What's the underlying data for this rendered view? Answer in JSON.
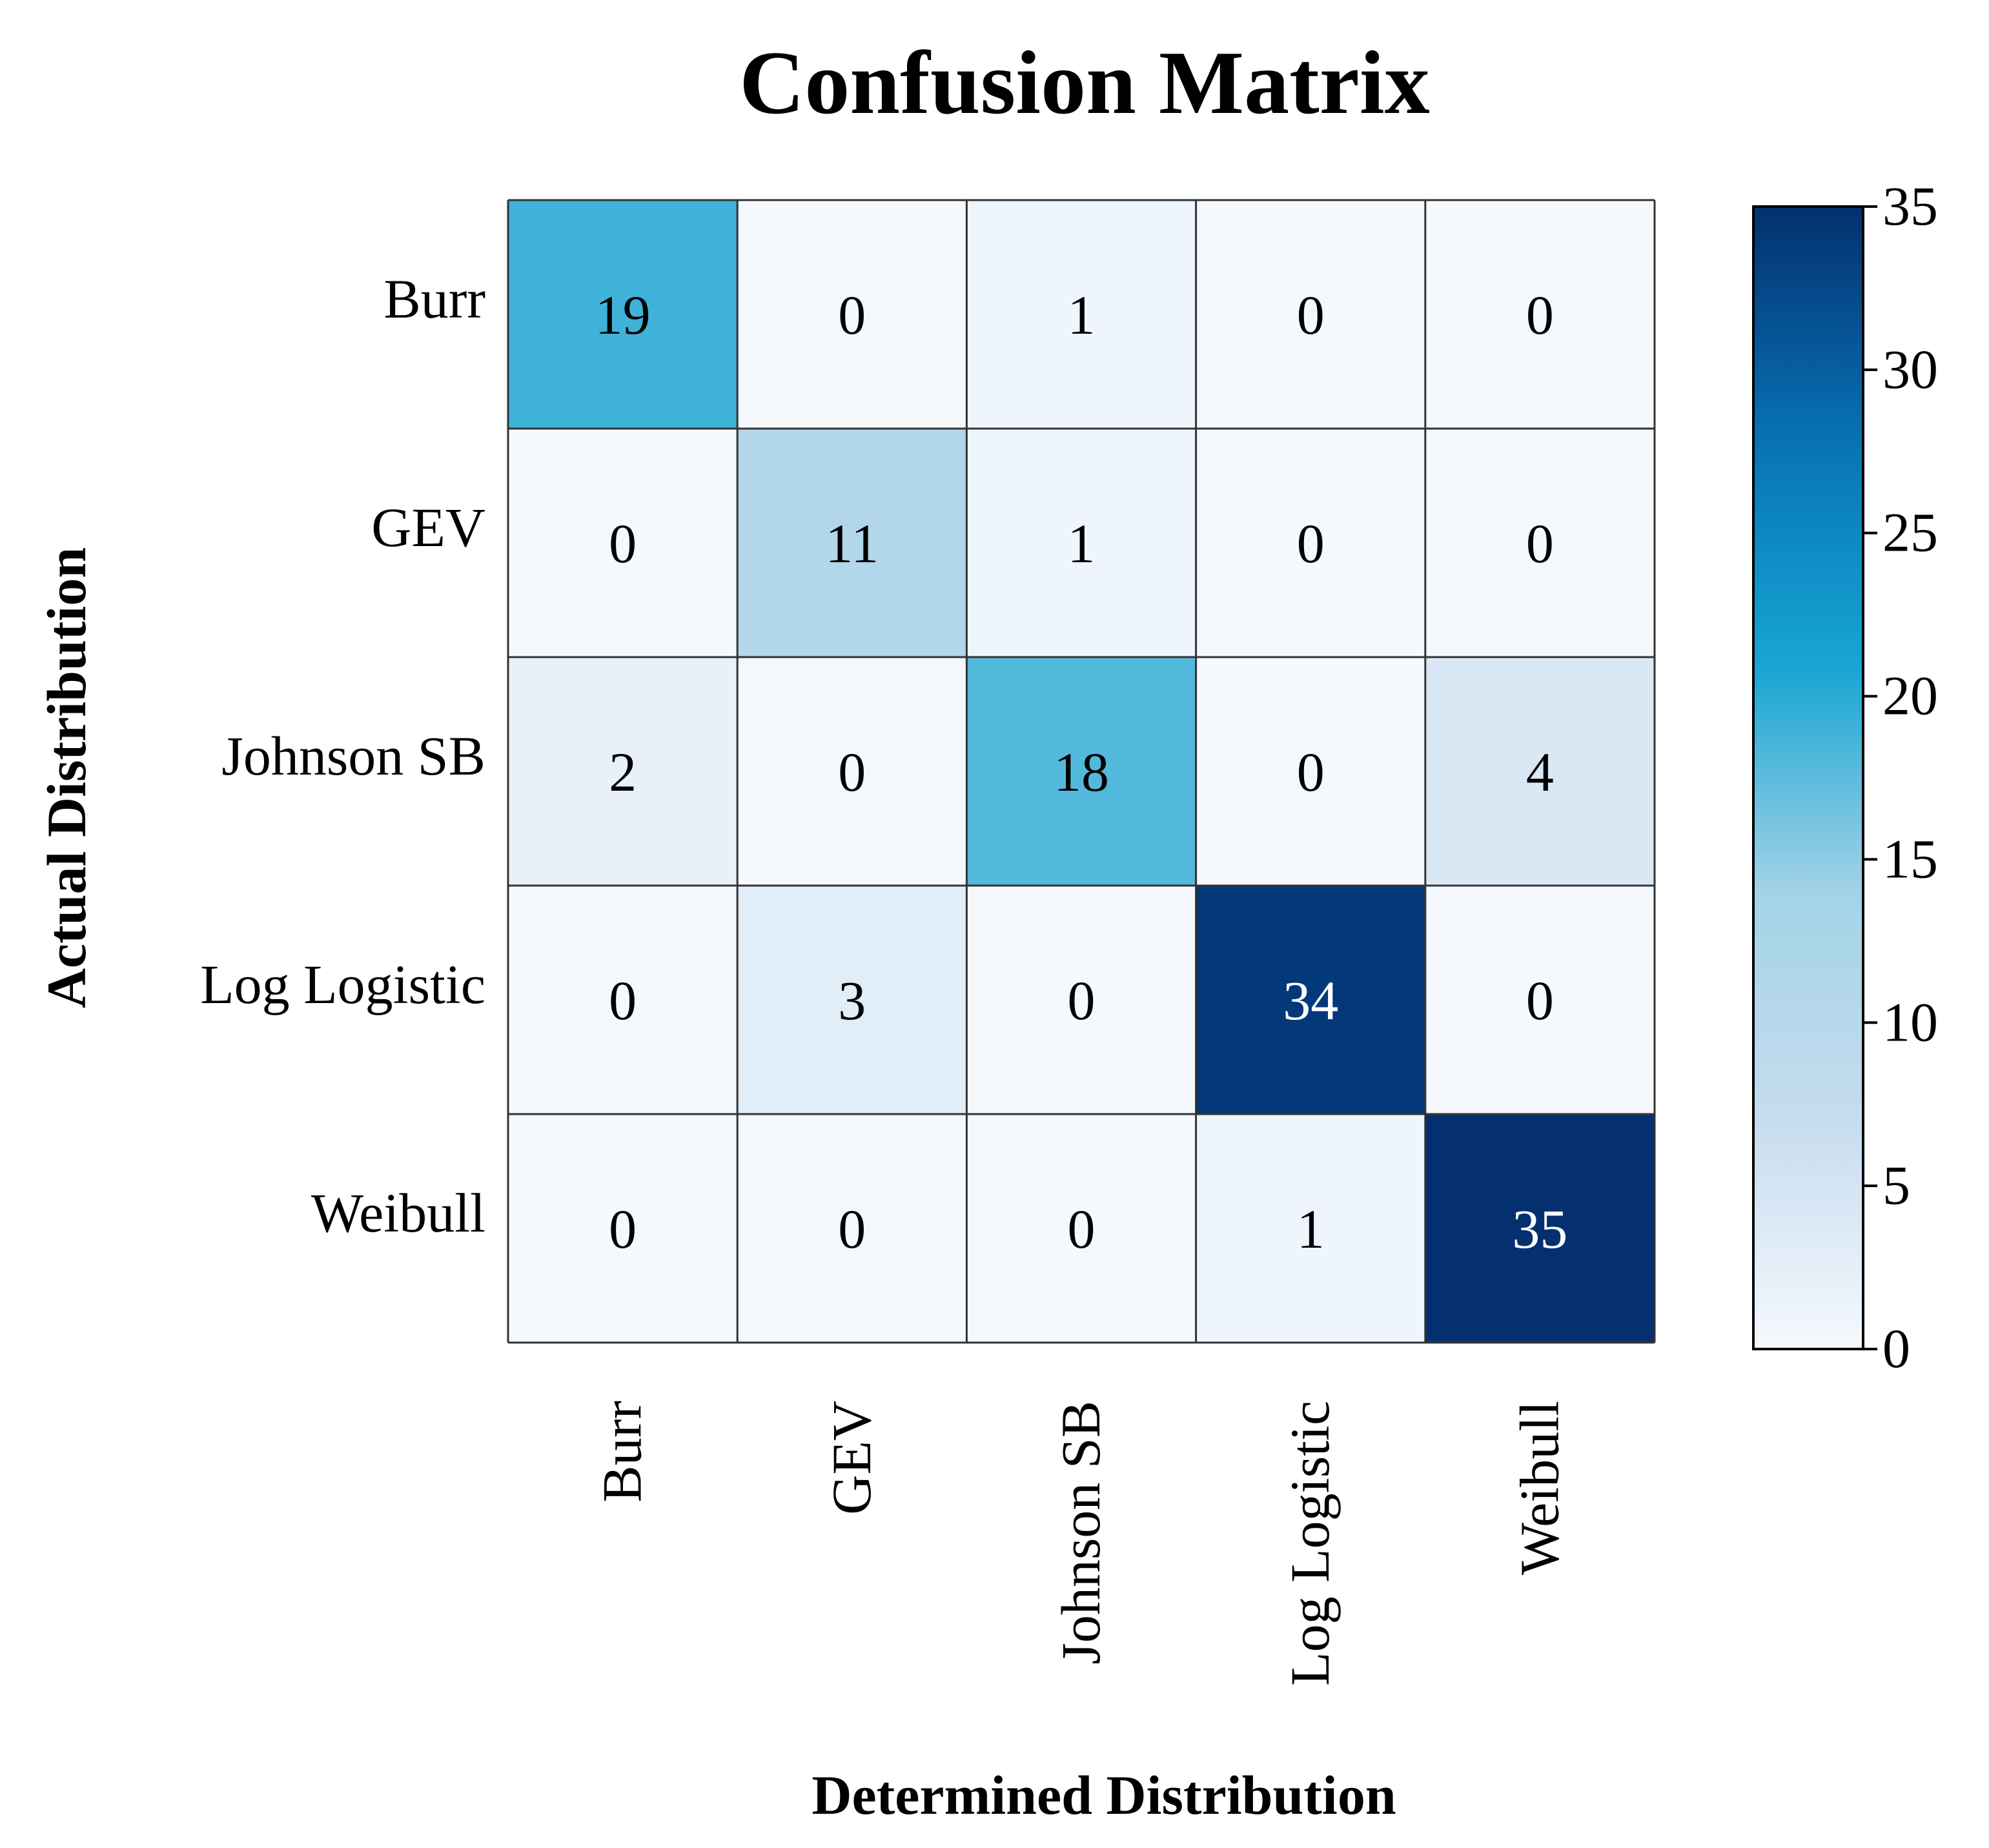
{
  "chart_data": {
    "type": "heatmap",
    "title": "Confusion Matrix",
    "xlabel": "Determined Distribution",
    "ylabel": "Actual Distribution",
    "x_categories": [
      "Burr",
      "GEV",
      "Johnson SB",
      "Log Logistic",
      "Weibull"
    ],
    "y_categories": [
      "Burr",
      "GEV",
      "Johnson SB",
      "Log Logistic",
      "Weibull"
    ],
    "values": [
      [
        19,
        0,
        1,
        0,
        0
      ],
      [
        0,
        11,
        1,
        0,
        0
      ],
      [
        2,
        0,
        18,
        0,
        4
      ],
      [
        0,
        3,
        0,
        34,
        0
      ],
      [
        0,
        0,
        0,
        1,
        35
      ]
    ],
    "colorbar": {
      "min": 0,
      "max": 35,
      "ticks": [
        0,
        5,
        10,
        15,
        20,
        25,
        30,
        35
      ],
      "colormap": [
        "#f5f9fe",
        "#c6dcee",
        "#a3d3e7",
        "#16a5d4",
        "#0771b3",
        "#04306f"
      ]
    }
  }
}
